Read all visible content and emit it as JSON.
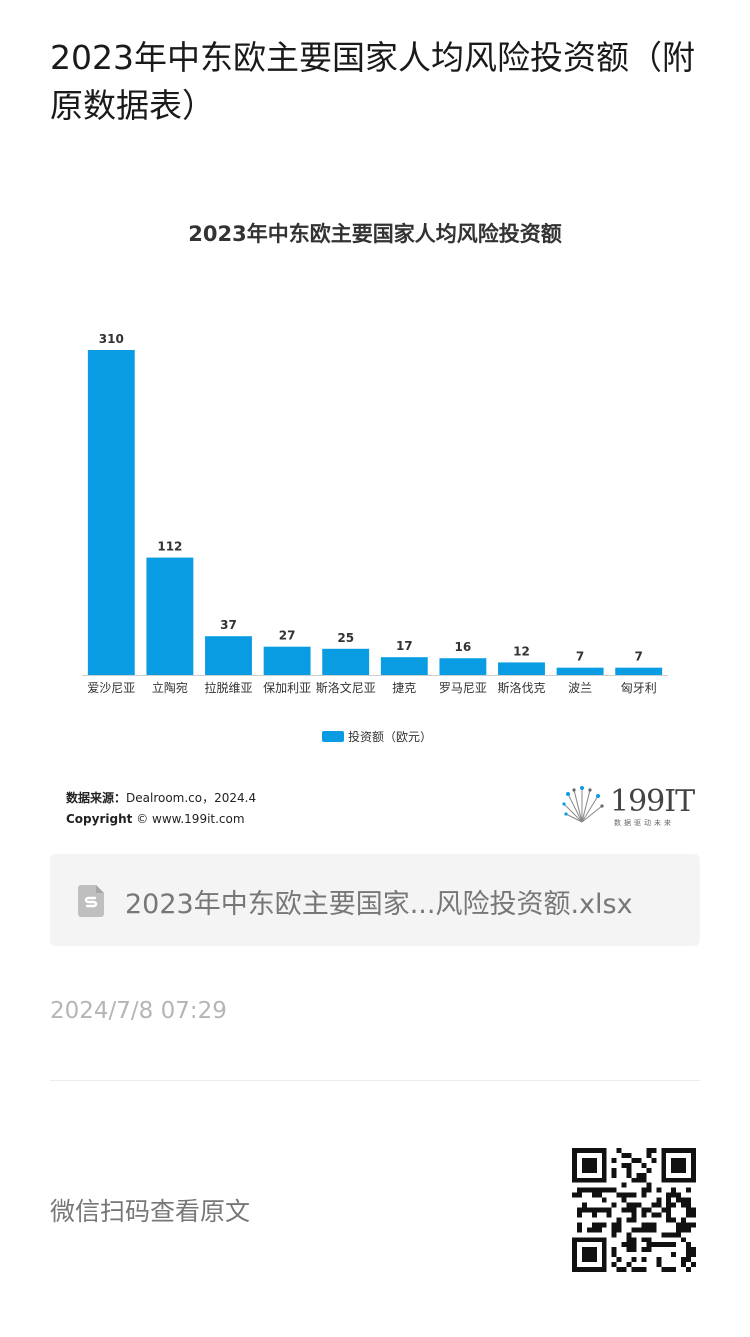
{
  "article": {
    "title": "2023年中东欧主要国家人均风险投资额（附原数据表）"
  },
  "chart_data": {
    "type": "bar",
    "title": "2023年中东欧主要国家人均风险投资额",
    "categories": [
      "爱沙尼亚",
      "立陶宛",
      "拉脱维亚",
      "保加利亚",
      "斯洛文尼亚",
      "捷克",
      "罗马尼亚",
      "斯洛伐克",
      "波兰",
      "匈牙利"
    ],
    "series": [
      {
        "name": "投资额（欧元）",
        "values": [
          310,
          112,
          37,
          27,
          25,
          17,
          16,
          12,
          7,
          7
        ]
      }
    ],
    "ylim": [
      0,
      310
    ],
    "grid": false,
    "legend_position": "bottom-center",
    "bar_color": "#0a9ce3"
  },
  "source": {
    "label": "数据来源：",
    "text": "Dealroom.co，2024.4",
    "copyright_label": "Copyright",
    "copyright_text": "© www.199it.com"
  },
  "brand": {
    "name": "199IT",
    "tagline": "数据驱动未来"
  },
  "attachment": {
    "file_name": "2023年中东欧主要国家...风险投资额.xlsx",
    "icon": "spreadsheet-file-icon"
  },
  "timestamp": "2024/7/8 07:29",
  "qr": {
    "caption": "微信扫码查看原文",
    "icon": "qr-code"
  }
}
